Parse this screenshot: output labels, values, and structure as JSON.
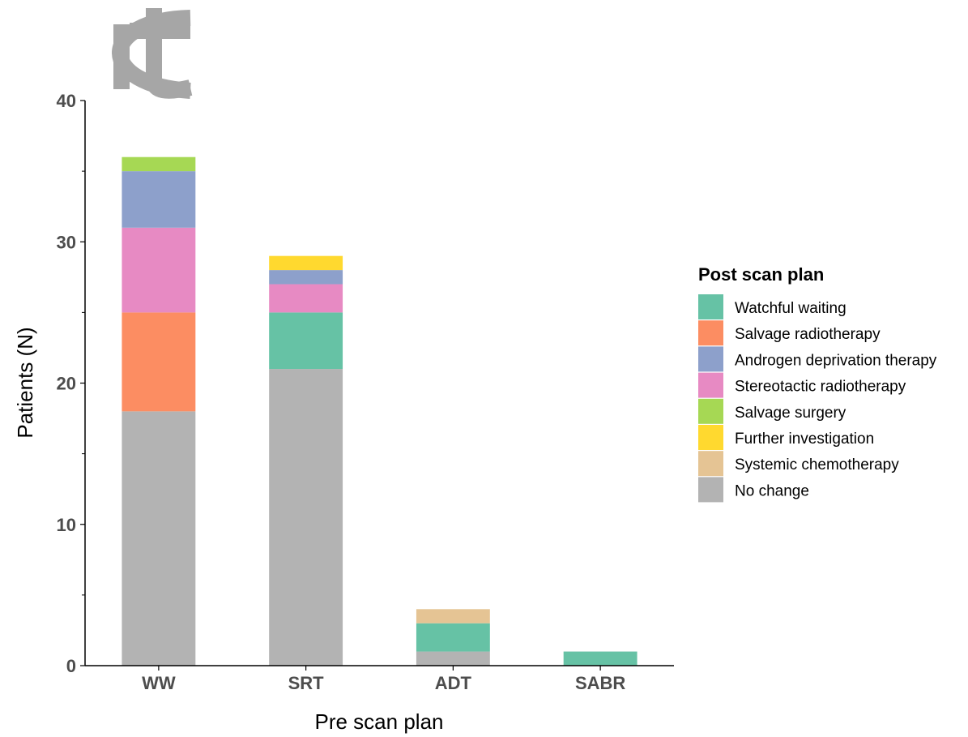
{
  "chart_data": {
    "type": "bar",
    "stacked": true,
    "categories": [
      "WW",
      "SRT",
      "ADT",
      "SABR"
    ],
    "xlabel": "Pre scan plan",
    "ylabel": "Patients (N)",
    "ylim": [
      0,
      40
    ],
    "yticks": [
      0,
      10,
      20,
      30,
      40
    ],
    "grid": false,
    "legend": {
      "title": "Post scan plan",
      "placement": "right"
    },
    "series": [
      {
        "name": "Watchful waiting",
        "color": "#66c2a5",
        "values": [
          0,
          4,
          2,
          1
        ]
      },
      {
        "name": "Salvage radiotherapy",
        "color": "#fc8d62",
        "values": [
          7,
          0,
          0,
          0
        ]
      },
      {
        "name": "Androgen deprivation therapy",
        "color": "#8da0cb",
        "values": [
          4,
          1,
          0,
          0
        ]
      },
      {
        "name": "Stereotactic radiotherapy",
        "color": "#e78ac3",
        "values": [
          6,
          2,
          0,
          0
        ]
      },
      {
        "name": "Salvage surgery",
        "color": "#a6d854",
        "values": [
          1,
          0,
          0,
          0
        ]
      },
      {
        "name": "Further investigation",
        "color": "#ffd92f",
        "values": [
          0,
          1,
          0,
          0
        ]
      },
      {
        "name": "Systemic chemotherapy",
        "color": "#e5c494",
        "values": [
          0,
          0,
          1,
          0
        ]
      },
      {
        "name": "No change",
        "color": "#b3b3b3",
        "values": [
          18,
          21,
          1,
          0
        ]
      }
    ],
    "stack_order": [
      "No change",
      "Watchful waiting",
      "Systemic chemotherapy",
      "Salvage radiotherapy",
      "Stereotactic radiotherapy",
      "Androgen deprivation therapy",
      "Further investigation",
      "Salvage surgery"
    ]
  }
}
